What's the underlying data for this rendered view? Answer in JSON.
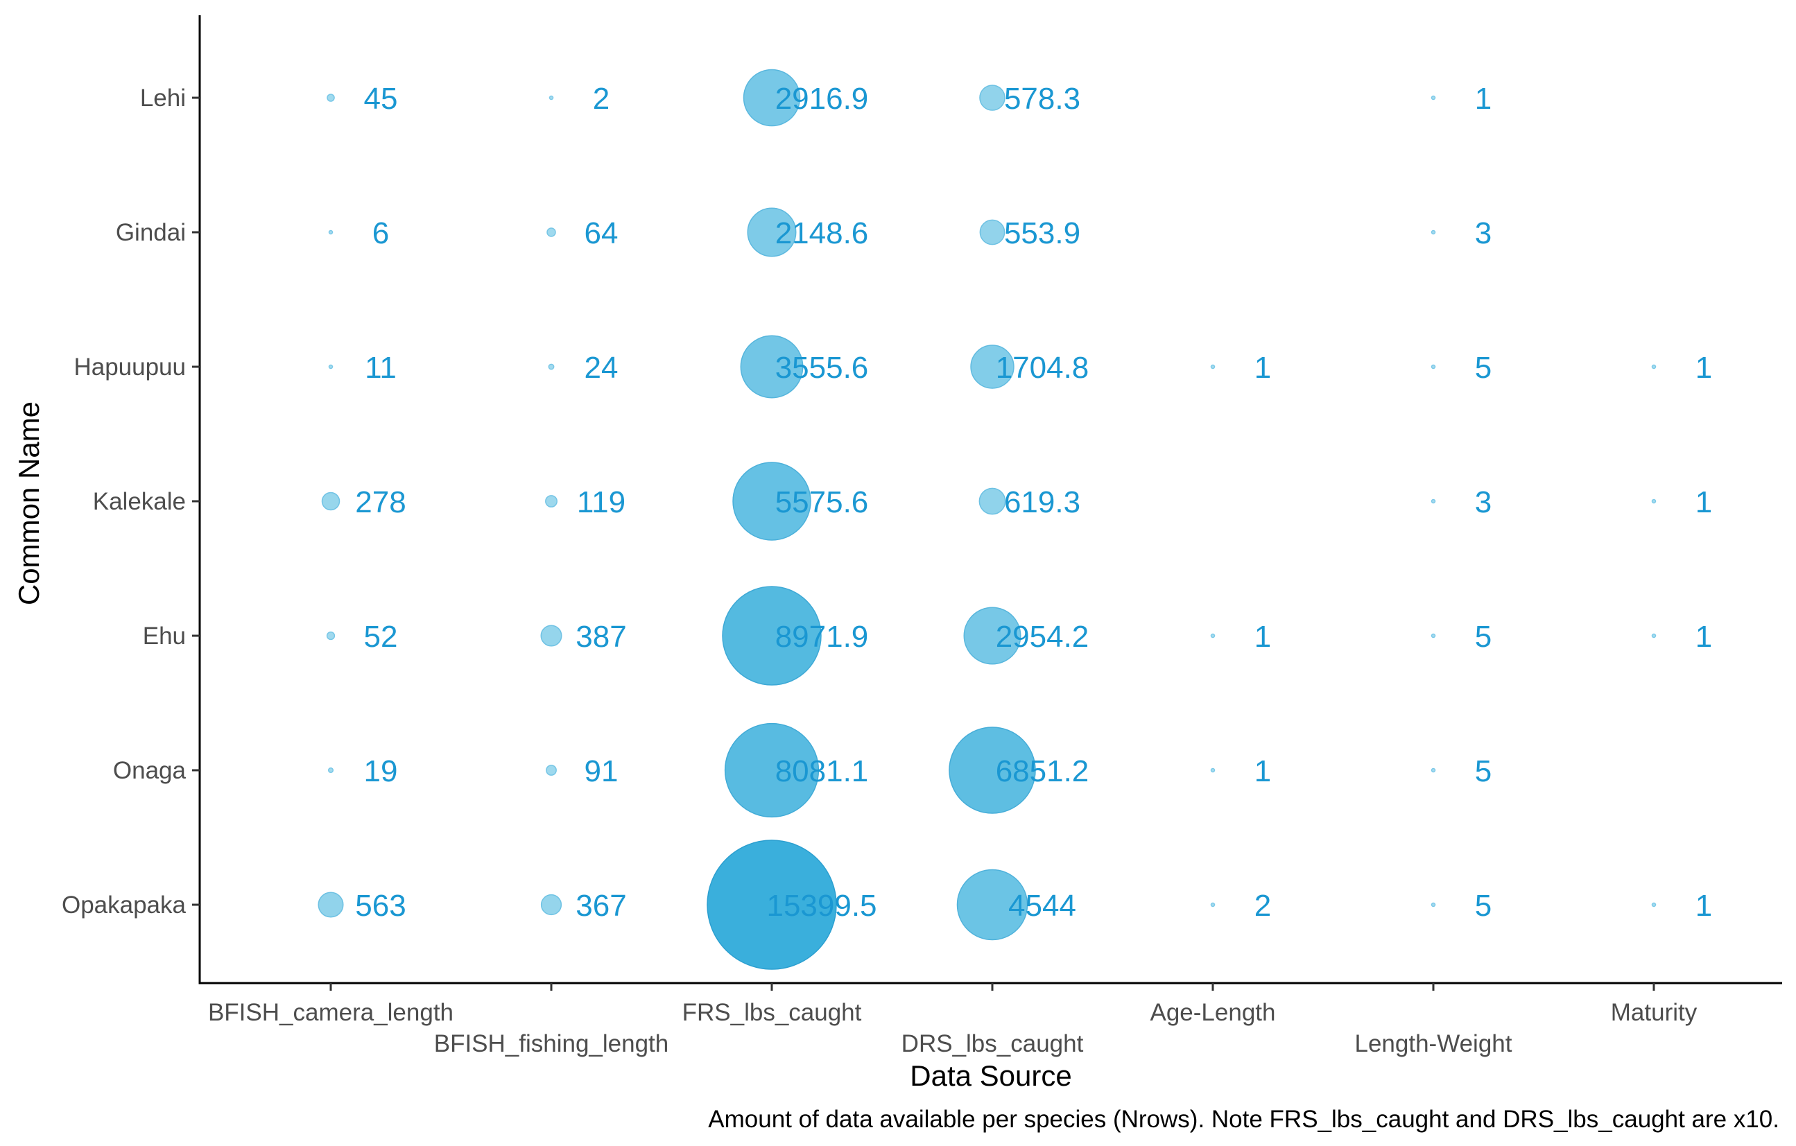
{
  "chart_data": {
    "type": "scatter",
    "subtype": "bubble",
    "xlabel": "Data Source",
    "ylabel": "Common Name",
    "caption": "Amount of data available per species (Nrows). Note FRS_lbs_caught and DRS_lbs_caught are x10.",
    "x_categories": [
      "BFISH_camera_length",
      "BFISH_fishing_length",
      "FRS_lbs_caught",
      "DRS_lbs_caught",
      "Age-Length",
      "Length-Weight",
      "Maturity"
    ],
    "y_categories": [
      "Lehi",
      "Gindai",
      "Hapuupuu",
      "Kalekale",
      "Ehu",
      "Onaga",
      "Opakapaka"
    ],
    "points": [
      {
        "species": "Lehi",
        "source": "BFISH_camera_length",
        "value": 45,
        "label": "45"
      },
      {
        "species": "Lehi",
        "source": "BFISH_fishing_length",
        "value": 2,
        "label": "2"
      },
      {
        "species": "Lehi",
        "source": "FRS_lbs_caught",
        "value": 2916.9,
        "label": "2916.9"
      },
      {
        "species": "Lehi",
        "source": "DRS_lbs_caught",
        "value": 578.3,
        "label": "578.3"
      },
      {
        "species": "Lehi",
        "source": "Length-Weight",
        "value": 1,
        "label": "1"
      },
      {
        "species": "Gindai",
        "source": "BFISH_camera_length",
        "value": 6,
        "label": "6"
      },
      {
        "species": "Gindai",
        "source": "BFISH_fishing_length",
        "value": 64,
        "label": "64"
      },
      {
        "species": "Gindai",
        "source": "FRS_lbs_caught",
        "value": 2148.6,
        "label": "2148.6"
      },
      {
        "species": "Gindai",
        "source": "DRS_lbs_caught",
        "value": 553.9,
        "label": "553.9"
      },
      {
        "species": "Gindai",
        "source": "Length-Weight",
        "value": 3,
        "label": "3"
      },
      {
        "species": "Hapuupuu",
        "source": "BFISH_camera_length",
        "value": 11,
        "label": "11"
      },
      {
        "species": "Hapuupuu",
        "source": "BFISH_fishing_length",
        "value": 24,
        "label": "24"
      },
      {
        "species": "Hapuupuu",
        "source": "FRS_lbs_caught",
        "value": 3555.6,
        "label": "3555.6"
      },
      {
        "species": "Hapuupuu",
        "source": "DRS_lbs_caught",
        "value": 1704.8,
        "label": "1704.8"
      },
      {
        "species": "Hapuupuu",
        "source": "Age-Length",
        "value": 1,
        "label": "1"
      },
      {
        "species": "Hapuupuu",
        "source": "Length-Weight",
        "value": 5,
        "label": "5"
      },
      {
        "species": "Hapuupuu",
        "source": "Maturity",
        "value": 1,
        "label": "1"
      },
      {
        "species": "Kalekale",
        "source": "BFISH_camera_length",
        "value": 278,
        "label": "278"
      },
      {
        "species": "Kalekale",
        "source": "BFISH_fishing_length",
        "value": 119,
        "label": "119"
      },
      {
        "species": "Kalekale",
        "source": "FRS_lbs_caught",
        "value": 5575.6,
        "label": "5575.6"
      },
      {
        "species": "Kalekale",
        "source": "DRS_lbs_caught",
        "value": 619.3,
        "label": "619.3"
      },
      {
        "species": "Kalekale",
        "source": "Length-Weight",
        "value": 3,
        "label": "3"
      },
      {
        "species": "Kalekale",
        "source": "Maturity",
        "value": 1,
        "label": "1"
      },
      {
        "species": "Ehu",
        "source": "BFISH_camera_length",
        "value": 52,
        "label": "52"
      },
      {
        "species": "Ehu",
        "source": "BFISH_fishing_length",
        "value": 387,
        "label": "387"
      },
      {
        "species": "Ehu",
        "source": "FRS_lbs_caught",
        "value": 8971.9,
        "label": "8971.9"
      },
      {
        "species": "Ehu",
        "source": "DRS_lbs_caught",
        "value": 2954.2,
        "label": "2954.2"
      },
      {
        "species": "Ehu",
        "source": "Age-Length",
        "value": 1,
        "label": "1"
      },
      {
        "species": "Ehu",
        "source": "Length-Weight",
        "value": 5,
        "label": "5"
      },
      {
        "species": "Ehu",
        "source": "Maturity",
        "value": 1,
        "label": "1"
      },
      {
        "species": "Onaga",
        "source": "BFISH_camera_length",
        "value": 19,
        "label": "19"
      },
      {
        "species": "Onaga",
        "source": "BFISH_fishing_length",
        "value": 91,
        "label": "91"
      },
      {
        "species": "Onaga",
        "source": "FRS_lbs_caught",
        "value": 8081.1,
        "label": "8081.1"
      },
      {
        "species": "Onaga",
        "source": "DRS_lbs_caught",
        "value": 6851.2,
        "label": "6851.2"
      },
      {
        "species": "Onaga",
        "source": "Age-Length",
        "value": 1,
        "label": "1"
      },
      {
        "species": "Onaga",
        "source": "Length-Weight",
        "value": 5,
        "label": "5"
      },
      {
        "species": "Opakapaka",
        "source": "BFISH_camera_length",
        "value": 563,
        "label": "563"
      },
      {
        "species": "Opakapaka",
        "source": "BFISH_fishing_length",
        "value": 367,
        "label": "367"
      },
      {
        "species": "Opakapaka",
        "source": "FRS_lbs_caught",
        "value": 15399.5,
        "label": "15399.5"
      },
      {
        "species": "Opakapaka",
        "source": "DRS_lbs_caught",
        "value": 4544,
        "label": "4544"
      },
      {
        "species": "Opakapaka",
        "source": "Age-Length",
        "value": 2,
        "label": "2"
      },
      {
        "species": "Opakapaka",
        "source": "Length-Weight",
        "value": 5,
        "label": "5"
      },
      {
        "species": "Opakapaka",
        "source": "Maturity",
        "value": 1,
        "label": "1"
      }
    ],
    "size_scale": "area proportional to value",
    "colors": {
      "bubble_light": "#a6dcef",
      "bubble_dark": "#3aafdc",
      "label": "#1a97d2",
      "axis": "#000000",
      "tick_text": "#4d4d4d"
    },
    "grid": false,
    "legend": "none"
  }
}
